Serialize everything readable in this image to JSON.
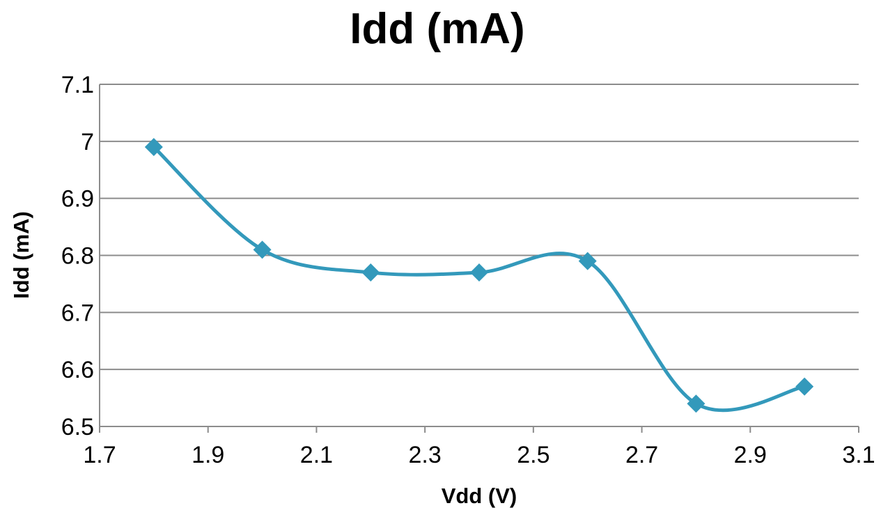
{
  "chart_data": {
    "type": "line",
    "title": "Idd (mA)",
    "xlabel": "Vdd (V)",
    "ylabel": "Idd (mA)",
    "xlim": [
      1.7,
      3.1
    ],
    "ylim": [
      6.5,
      7.1
    ],
    "x_ticks": [
      "1.7",
      "1.9",
      "2.1",
      "2.3",
      "2.5",
      "2.7",
      "2.9",
      "3.1"
    ],
    "y_ticks": [
      "6.5",
      "6.6",
      "6.7",
      "6.8",
      "6.9",
      "7",
      "7.1"
    ],
    "grid": "horizontal",
    "smooth": true,
    "marker": "diamond",
    "color": "#3399bb",
    "series": [
      {
        "x": [
          1.8,
          2.0,
          2.2,
          2.4,
          2.6,
          2.8,
          3.0
        ],
        "y": [
          6.99,
          6.81,
          6.77,
          6.77,
          6.79,
          6.54,
          6.57
        ]
      }
    ]
  }
}
